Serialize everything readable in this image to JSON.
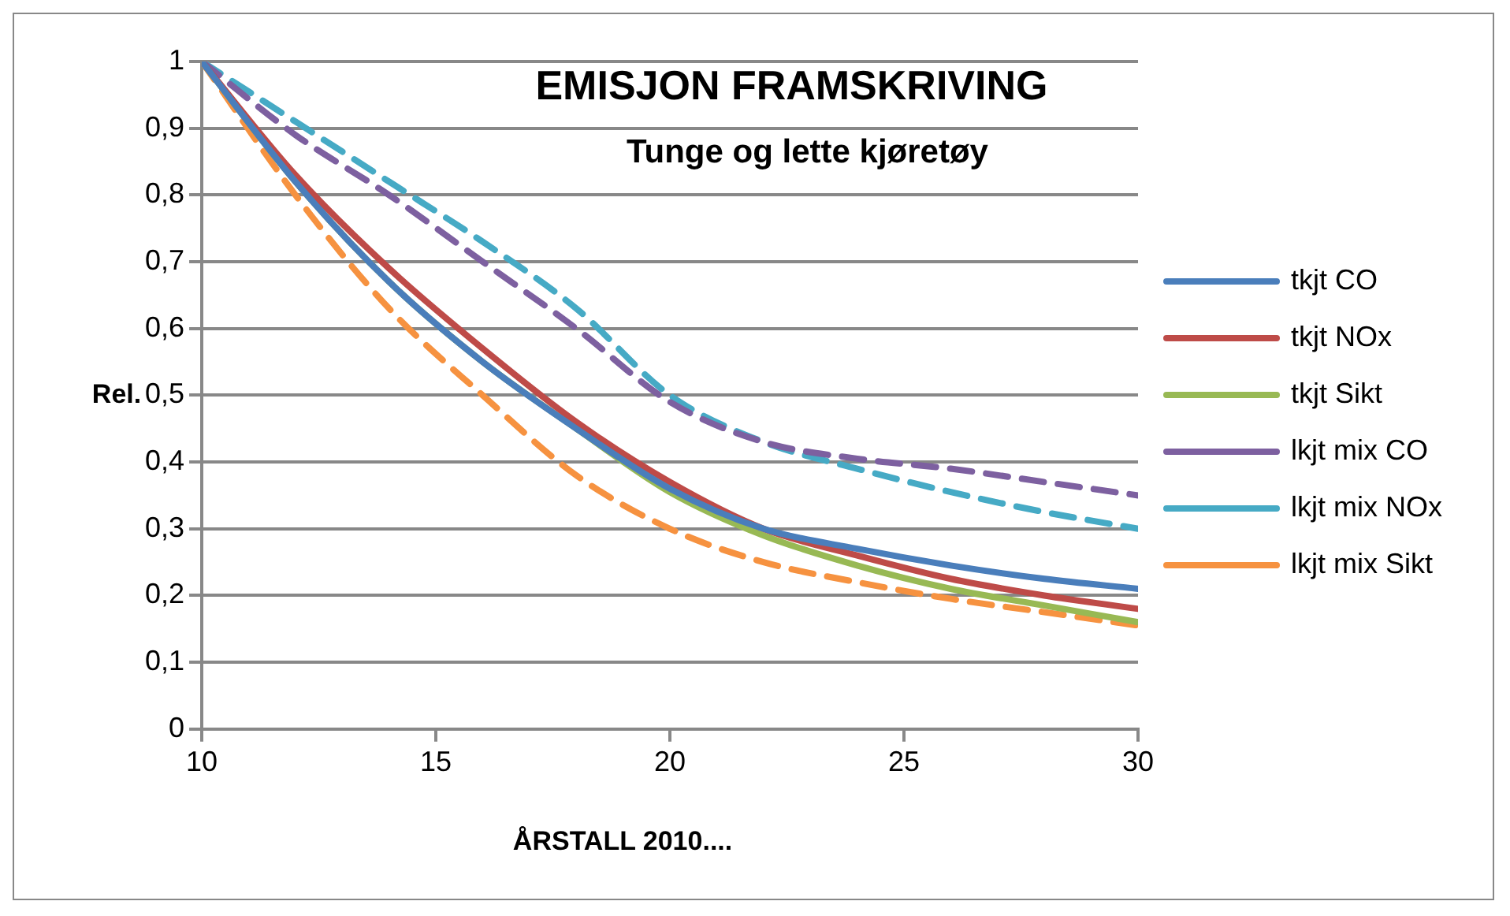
{
  "chart_data": {
    "type": "line",
    "title": "EMISJON FRAMSKRIVING",
    "subtitle": "Tunge og lette kjøretøy",
    "xlabel": "ÅRSTALL 2010....",
    "ylabel": "Rel.",
    "x": [
      10,
      12,
      14,
      16,
      18,
      20,
      22,
      24,
      26,
      28,
      30
    ],
    "series": [
      {
        "name": "tkjt CO",
        "color": "#4a7ebb",
        "line_style": "solid",
        "values": [
          1,
          0.82,
          0.67,
          0.55,
          0.45,
          0.36,
          0.3,
          0.27,
          0.245,
          0.225,
          0.21
        ]
      },
      {
        "name": "tkjt NOx",
        "color": "#be4b48",
        "line_style": "solid",
        "values": [
          1,
          0.83,
          0.69,
          0.57,
          0.46,
          0.37,
          0.3,
          0.26,
          0.225,
          0.2,
          0.18
        ]
      },
      {
        "name": "tkjt Sikt",
        "color": "#98b954",
        "line_style": "solid",
        "values": [
          1,
          0.82,
          0.67,
          0.55,
          0.45,
          0.355,
          0.29,
          0.245,
          0.21,
          0.185,
          0.16
        ]
      },
      {
        "name": "lkjt mix CO",
        "color": "#7d60a0",
        "line_style": "dashed",
        "values": [
          1,
          0.89,
          0.8,
          0.7,
          0.6,
          0.49,
          0.43,
          0.405,
          0.39,
          0.37,
          0.35
        ]
      },
      {
        "name": "lkjt mix NOx",
        "color": "#46aac5",
        "line_style": "dashed",
        "values": [
          1,
          0.91,
          0.82,
          0.73,
          0.63,
          0.5,
          0.43,
          0.39,
          0.355,
          0.325,
          0.3
        ]
      },
      {
        "name": "lkjt mix Sikt",
        "color": "#f69240",
        "line_style": "dashed",
        "values": [
          1,
          0.8,
          0.63,
          0.5,
          0.38,
          0.3,
          0.25,
          0.22,
          0.195,
          0.175,
          0.155
        ]
      }
    ],
    "xlim": [
      10,
      30
    ],
    "xticks": [
      10,
      15,
      20,
      25,
      30
    ],
    "ylim": [
      0,
      1
    ],
    "yticks": [
      0,
      {
        "value": 0.1,
        "label": "0,1"
      },
      {
        "value": 0.2,
        "label": "0,2"
      },
      {
        "value": 0.3,
        "label": "0,3"
      },
      {
        "value": 0.4,
        "label": "0,4"
      },
      {
        "value": 0.5,
        "label": "0,5"
      },
      {
        "value": 0.6,
        "label": "0,6"
      },
      {
        "value": 0.7,
        "label": "0,7"
      },
      {
        "value": 0.8,
        "label": "0,8"
      },
      {
        "value": 0.9,
        "label": "0,9"
      },
      1
    ],
    "grid": "y",
    "legend": "right",
    "marker": "none"
  }
}
